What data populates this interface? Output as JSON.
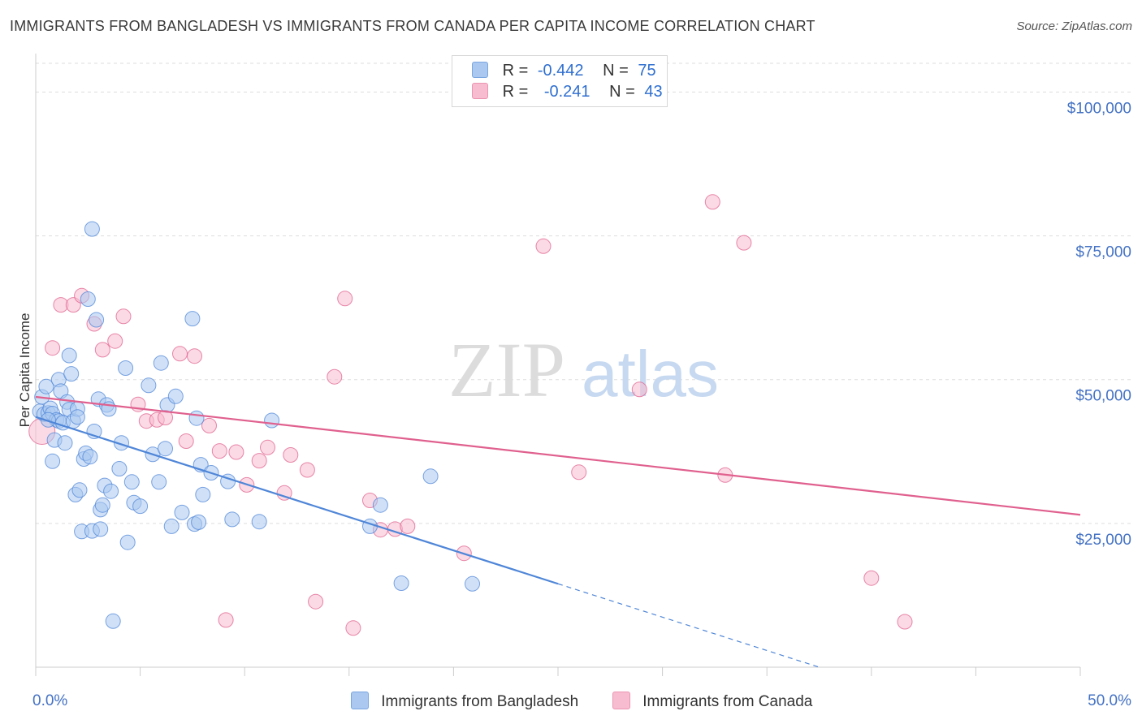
{
  "header": {
    "title": "IMMIGRANTS FROM BANGLADESH VS IMMIGRANTS FROM CANADA PER CAPITA INCOME CORRELATION CHART",
    "source": "Source: ZipAtlas.com"
  },
  "legend": {
    "rows": [
      {
        "r_label": "R =",
        "r_value": "-0.442",
        "n_label": "N =",
        "n_value": "75",
        "color": "#aac8f0"
      },
      {
        "r_label": "R =",
        "r_value": "-0.241",
        "n_label": "N =",
        "n_value": "43",
        "color": "#f7bcd0"
      }
    ]
  },
  "watermark": {
    "part1": "ZIP",
    "part2": "atlas"
  },
  "bottom_legend": {
    "items": [
      {
        "label": "Immigrants from Bangladesh",
        "color": "#aac8f0"
      },
      {
        "label": "Immigrants from Canada",
        "color": "#f7bcd0"
      }
    ]
  },
  "chart_data": {
    "type": "scatter",
    "title": "IMMIGRANTS FROM BANGLADESH VS IMMIGRANTS FROM CANADA PER CAPITA INCOME CORRELATION CHART",
    "xlabel": "",
    "ylabel": "Per Capita Income",
    "xlim": [
      0,
      50
    ],
    "ylim": [
      0,
      105000
    ],
    "x_tick_labels": [
      "0.0%",
      "50.0%"
    ],
    "y_ticks": [
      {
        "value": 25000,
        "label": "$25,000"
      },
      {
        "value": 50000,
        "label": "$50,000"
      },
      {
        "value": 75000,
        "label": "$75,000"
      },
      {
        "value": 100000,
        "label": "$100,000"
      }
    ],
    "grid": true,
    "legend_position": "top-center",
    "series": [
      {
        "name": "Immigrants from Bangladesh",
        "color": "#4f86d8",
        "fill": "#aac8f0",
        "trend": {
          "x0": 0,
          "y0": 43500,
          "x1": 25,
          "y1": 14500,
          "dash_to_x": 37.5,
          "dash_to_y": 0
        },
        "points": [
          [
            0.2,
            44500
          ],
          [
            0.3,
            47000
          ],
          [
            0.4,
            44000
          ],
          [
            0.5,
            48800
          ],
          [
            0.6,
            44200
          ],
          [
            0.7,
            45000
          ],
          [
            0.8,
            44100
          ],
          [
            0.8,
            35800
          ],
          [
            0.9,
            39500
          ],
          [
            1.0,
            43000
          ],
          [
            1.1,
            42800
          ],
          [
            1.1,
            50000
          ],
          [
            1.2,
            48000
          ],
          [
            1.3,
            42500
          ],
          [
            1.4,
            39000
          ],
          [
            1.5,
            46100
          ],
          [
            1.6,
            54200
          ],
          [
            1.6,
            44800
          ],
          [
            1.7,
            51000
          ],
          [
            1.8,
            42800
          ],
          [
            1.9,
            30000
          ],
          [
            2.0,
            44900
          ],
          [
            2.0,
            43500
          ],
          [
            2.1,
            30800
          ],
          [
            2.2,
            23600
          ],
          [
            2.3,
            36200
          ],
          [
            2.4,
            37200
          ],
          [
            2.5,
            64000
          ],
          [
            2.6,
            36600
          ],
          [
            2.7,
            76200
          ],
          [
            2.7,
            23700
          ],
          [
            2.8,
            41000
          ],
          [
            2.9,
            60400
          ],
          [
            3.0,
            46600
          ],
          [
            3.1,
            24000
          ],
          [
            3.1,
            27400
          ],
          [
            3.2,
            28200
          ],
          [
            3.3,
            31600
          ],
          [
            3.4,
            45600
          ],
          [
            3.5,
            44900
          ],
          [
            3.6,
            30600
          ],
          [
            3.7,
            8000
          ],
          [
            4.0,
            34500
          ],
          [
            4.1,
            39000
          ],
          [
            4.3,
            52000
          ],
          [
            4.4,
            21700
          ],
          [
            4.6,
            32200
          ],
          [
            4.7,
            28600
          ],
          [
            5.0,
            28000
          ],
          [
            5.4,
            49000
          ],
          [
            5.6,
            37000
          ],
          [
            5.9,
            32200
          ],
          [
            6.0,
            52900
          ],
          [
            6.2,
            38000
          ],
          [
            6.3,
            45600
          ],
          [
            6.5,
            24500
          ],
          [
            6.7,
            47100
          ],
          [
            7.0,
            26900
          ],
          [
            7.5,
            60600
          ],
          [
            7.6,
            24900
          ],
          [
            7.7,
            43300
          ],
          [
            7.8,
            25200
          ],
          [
            7.9,
            35200
          ],
          [
            8.0,
            30000
          ],
          [
            8.4,
            33800
          ],
          [
            9.2,
            32300
          ],
          [
            9.4,
            25700
          ],
          [
            10.7,
            25300
          ],
          [
            11.3,
            42900
          ],
          [
            16.0,
            24500
          ],
          [
            16.5,
            28200
          ],
          [
            17.5,
            14600
          ],
          [
            18.9,
            33200
          ],
          [
            20.9,
            14500
          ],
          [
            0.6,
            43000
          ]
        ]
      },
      {
        "name": "Immigrants from Canada",
        "color": "#e0608e",
        "fill": "#f7bcd0",
        "trend": {
          "x0": 0,
          "y0": 47000,
          "x1": 50,
          "y1": 26500
        },
        "points": [
          [
            0.3,
            41000
          ],
          [
            0.8,
            55500
          ],
          [
            1.2,
            63000
          ],
          [
            1.8,
            63000
          ],
          [
            2.2,
            64600
          ],
          [
            2.8,
            59700
          ],
          [
            3.2,
            55200
          ],
          [
            3.8,
            56700
          ],
          [
            4.2,
            61000
          ],
          [
            4.9,
            45700
          ],
          [
            5.3,
            42800
          ],
          [
            5.8,
            43000
          ],
          [
            6.2,
            43400
          ],
          [
            6.9,
            54500
          ],
          [
            7.2,
            39300
          ],
          [
            7.6,
            54100
          ],
          [
            8.3,
            42000
          ],
          [
            8.8,
            37600
          ],
          [
            9.1,
            8200
          ],
          [
            9.6,
            37400
          ],
          [
            10.1,
            31700
          ],
          [
            10.7,
            35900
          ],
          [
            11.1,
            38200
          ],
          [
            11.9,
            30300
          ],
          [
            12.2,
            36900
          ],
          [
            13.0,
            34300
          ],
          [
            13.4,
            11400
          ],
          [
            14.3,
            50500
          ],
          [
            14.8,
            64100
          ],
          [
            15.2,
            6800
          ],
          [
            16.0,
            29000
          ],
          [
            16.5,
            23900
          ],
          [
            17.2,
            24000
          ],
          [
            17.8,
            24500
          ],
          [
            20.5,
            19800
          ],
          [
            24.3,
            73200
          ],
          [
            26.0,
            33900
          ],
          [
            28.9,
            48300
          ],
          [
            32.4,
            80900
          ],
          [
            33.0,
            33400
          ],
          [
            33.9,
            73800
          ],
          [
            40.0,
            15500
          ],
          [
            41.6,
            7900
          ]
        ]
      }
    ]
  }
}
